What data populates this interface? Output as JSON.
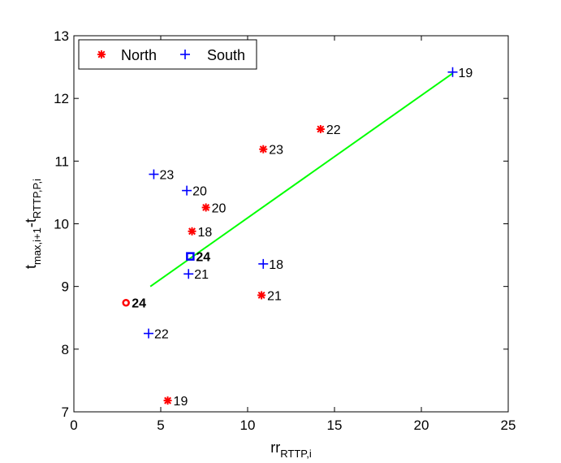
{
  "chart_data": {
    "type": "scatter",
    "xlabel": {
      "base": "rr",
      "sub": "RTTP,i"
    },
    "ylabel": {
      "base": "t",
      "sub1": "max,i+1",
      "mid": "-t",
      "sub2": "RTTP,P,i"
    },
    "xlim": [
      0,
      25
    ],
    "ylim": [
      7,
      13
    ],
    "xticks": [
      0,
      5,
      10,
      15,
      20,
      25
    ],
    "yticks": [
      7,
      8,
      9,
      10,
      11,
      12,
      13
    ],
    "grid": false,
    "legend_position": "top-left",
    "legend": [
      {
        "name": "North",
        "marker": "asterisk",
        "color": "#ff0000"
      },
      {
        "name": "South",
        "marker": "plus",
        "color": "#0000ff"
      }
    ],
    "series": [
      {
        "name": "North",
        "color": "#ff0000",
        "marker": "asterisk",
        "points": [
          {
            "x": 14.2,
            "y": 11.51,
            "label": "22"
          },
          {
            "x": 10.9,
            "y": 11.19,
            "label": "23"
          },
          {
            "x": 7.6,
            "y": 10.26,
            "label": "20"
          },
          {
            "x": 6.8,
            "y": 9.88,
            "label": "18"
          },
          {
            "x": 10.8,
            "y": 8.86,
            "label": "21"
          },
          {
            "x": 5.4,
            "y": 7.18,
            "label": "19"
          }
        ]
      },
      {
        "name": "South",
        "color": "#0000ff",
        "marker": "plus",
        "points": [
          {
            "x": 21.8,
            "y": 12.42,
            "label": "19"
          },
          {
            "x": 4.6,
            "y": 10.79,
            "label": "23"
          },
          {
            "x": 6.5,
            "y": 10.53,
            "label": "20"
          },
          {
            "x": 10.9,
            "y": 9.36,
            "label": "18"
          },
          {
            "x": 6.6,
            "y": 9.2,
            "label": "21"
          },
          {
            "x": 4.3,
            "y": 8.25,
            "label": "22"
          }
        ]
      }
    ],
    "special_points": [
      {
        "x": 3.0,
        "y": 8.74,
        "label": "24",
        "marker": "circle",
        "color": "#ff0000"
      },
      {
        "x": 6.7,
        "y": 9.48,
        "label": "24",
        "marker": "square",
        "color": "#0000ff"
      }
    ],
    "fit_line": {
      "color": "#00ff00",
      "x": [
        4.4,
        21.8
      ],
      "y": [
        9.0,
        12.4
      ]
    }
  }
}
